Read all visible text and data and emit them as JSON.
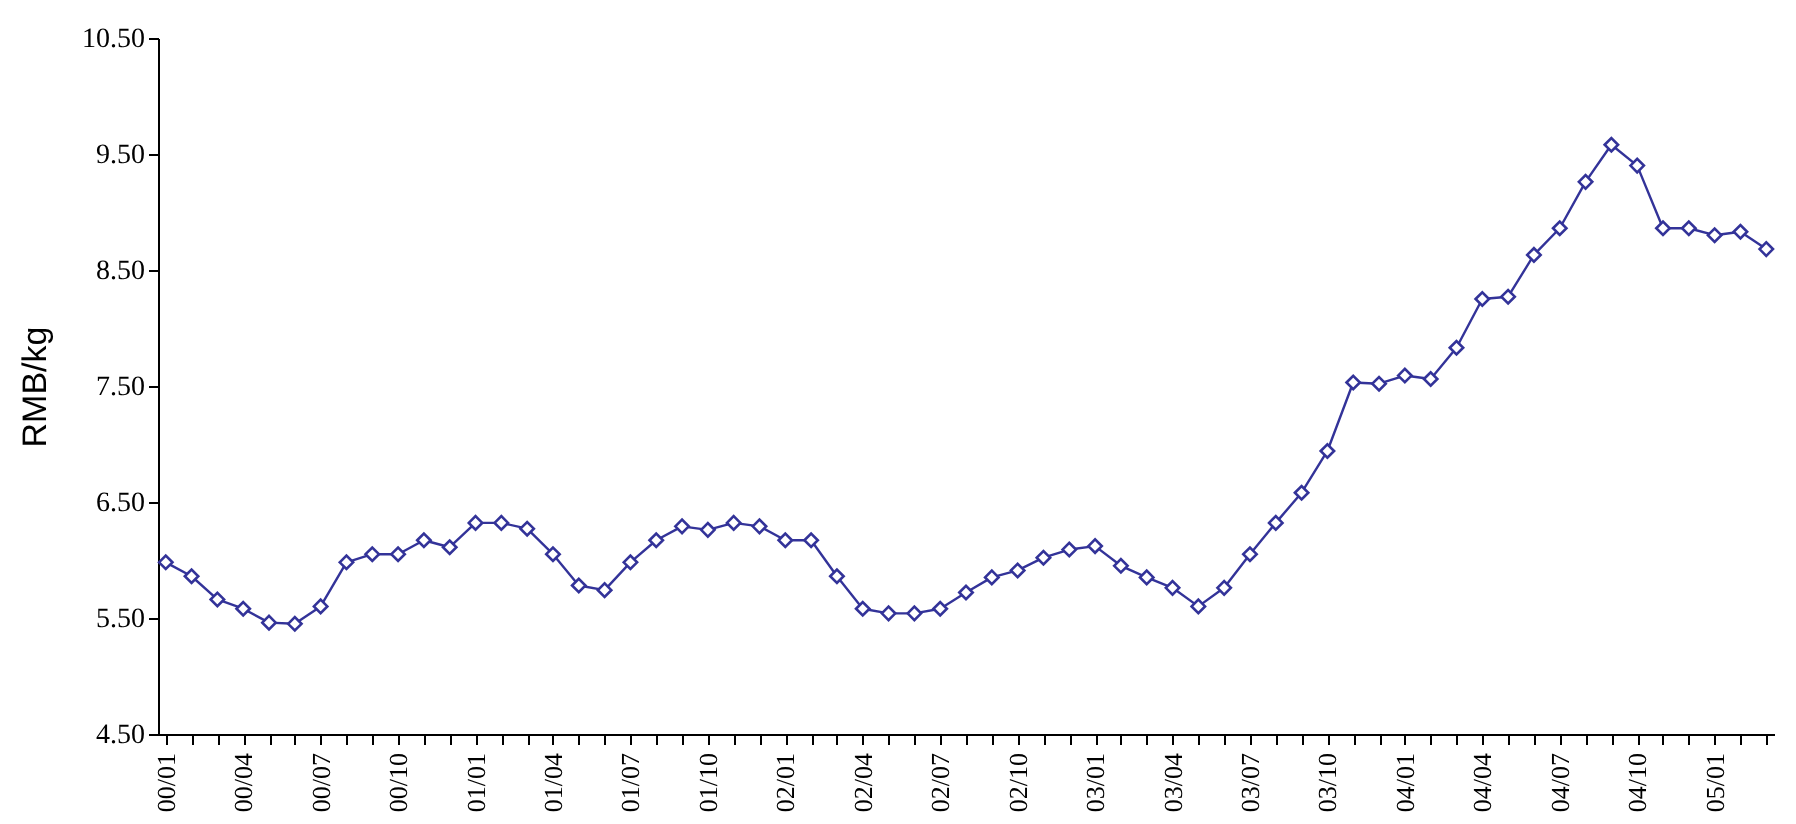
{
  "chart_data": {
    "type": "line",
    "ylabel": "RMB/kg",
    "categories": [
      "00/01",
      null,
      null,
      "00/04",
      null,
      null,
      "00/07",
      null,
      null,
      "00/10",
      null,
      null,
      "01/01",
      null,
      null,
      "01/04",
      null,
      null,
      "01/07",
      null,
      null,
      "01/10",
      null,
      null,
      "02/01",
      null,
      null,
      "02/04",
      null,
      null,
      "02/07",
      null,
      null,
      "02/10",
      null,
      null,
      "03/01",
      null,
      null,
      "03/04",
      null,
      null,
      "03/07",
      null,
      null,
      "03/10",
      null,
      null,
      "04/01",
      null,
      null,
      "04/04",
      null,
      null,
      "04/07",
      null,
      null,
      "04/10",
      null,
      null,
      "05/01",
      null,
      null
    ],
    "series": [
      {
        "color": "#333399",
        "values": [
          5.98,
          5.86,
          5.66,
          5.58,
          5.46,
          5.45,
          5.6,
          5.98,
          6.05,
          6.05,
          6.17,
          6.11,
          6.32,
          6.32,
          6.27,
          6.05,
          5.78,
          5.74,
          5.98,
          6.17,
          6.29,
          6.26,
          6.32,
          6.29,
          6.17,
          6.17,
          5.86,
          5.58,
          5.54,
          5.54,
          5.58,
          5.72,
          5.85,
          5.91,
          6.02,
          6.09,
          6.12,
          5.95,
          5.85,
          5.76,
          5.6,
          5.76,
          6.05,
          6.32,
          6.58,
          6.94,
          7.53,
          7.52,
          7.59,
          7.56,
          7.83,
          8.25,
          8.27,
          8.63,
          8.86,
          9.26,
          9.58,
          9.4,
          8.86,
          8.86,
          8.8,
          8.83,
          8.68
        ]
      }
    ],
    "ylim": [
      4.5,
      10.5
    ],
    "yticks": [
      {
        "value": 4.5,
        "label": "4.50"
      },
      {
        "value": 5.5,
        "label": "5.50"
      },
      {
        "value": 6.5,
        "label": "6.50"
      },
      {
        "value": 7.5,
        "label": "7.50"
      },
      {
        "value": 8.5,
        "label": "8.50"
      },
      {
        "value": 9.5,
        "label": "9.50"
      },
      {
        "value": 10.5,
        "label": "10.50"
      }
    ],
    "grid": false,
    "marker": "diamond",
    "line_style": "solid"
  }
}
